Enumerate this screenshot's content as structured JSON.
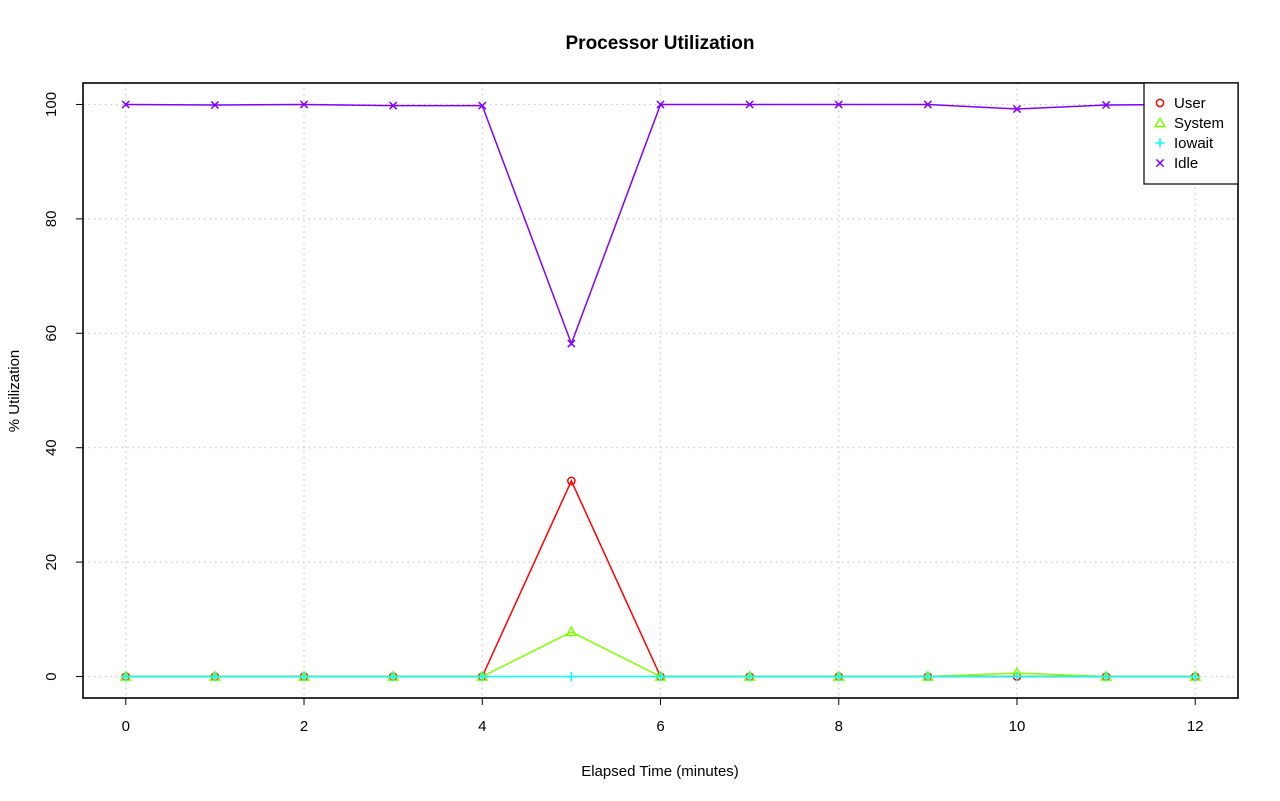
{
  "chart_data": {
    "type": "line",
    "title": "Processor Utilization",
    "xlabel": "Elapsed Time (minutes)",
    "ylabel": "% Utilization",
    "x": [
      0,
      1,
      2,
      3,
      4,
      5,
      6,
      7,
      8,
      9,
      10,
      11,
      12
    ],
    "xlim": [
      -0.48,
      12.48
    ],
    "ylim": [
      -3.75,
      103.75
    ],
    "xticks": [
      0,
      2,
      4,
      6,
      8,
      10,
      12
    ],
    "yticks": [
      0,
      20,
      40,
      60,
      80,
      100
    ],
    "grid": true,
    "legend_position": "top-right",
    "series": [
      {
        "name": "User",
        "color": "#ff0000",
        "marker": "circle",
        "values": [
          0,
          0,
          0,
          0,
          0,
          34.2,
          0,
          0,
          0,
          0,
          0,
          0,
          0
        ]
      },
      {
        "name": "System",
        "color": "#80ff00",
        "marker": "triangle",
        "values": [
          0,
          0,
          0,
          0,
          0,
          7.8,
          0,
          0,
          0,
          0,
          0.6,
          0,
          0
        ]
      },
      {
        "name": "Iowait",
        "color": "#00ffff",
        "marker": "plus",
        "values": [
          0,
          0,
          0,
          0,
          0,
          0,
          0,
          0,
          0,
          0,
          0,
          0,
          0
        ]
      },
      {
        "name": "Idle",
        "color": "#8000ff",
        "marker": "cross",
        "values": [
          100,
          99.9,
          100,
          99.8,
          99.8,
          58.2,
          100,
          100,
          100,
          100,
          99.2,
          99.9,
          100
        ]
      }
    ]
  }
}
